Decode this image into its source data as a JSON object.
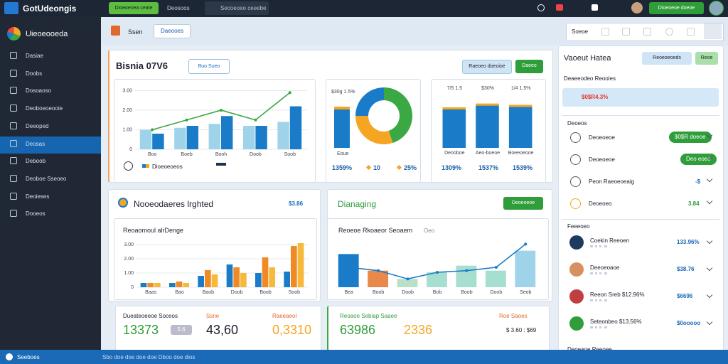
{
  "topbar": {
    "brand": "GotUdeongis",
    "button": "Dioeoeoea ceate",
    "tab": "Deosoos",
    "search": "Secoeoeo ceeebe",
    "button2": "Dioeoeoe doeoe"
  },
  "sidebar": {
    "brand": "Uieoeooeda",
    "items": [
      "Dasiae",
      "Doobs",
      "Dosoaoso",
      "Deoboeoeooie",
      "Deeoped",
      "Deosas",
      "Deboob",
      "Deoboe Sseoeo",
      "Deoieses",
      "Dooeos"
    ]
  },
  "toolbar": {
    "title": "Ssen",
    "tab": "Daeooes",
    "label": "Soeoe"
  },
  "overview": {
    "title": "Bisnia 07V6",
    "button": "Buo Sueo",
    "actions": [
      "Raeoeo doeoioe",
      "Daeeo"
    ],
    "combo": {
      "type": "bar",
      "ylim": [
        0,
        3.2
      ],
      "yticks": [
        0,
        {
          "value": 1,
          "label": "1.00"
        },
        {
          "value": 2,
          "label": "2.00"
        },
        {
          "value": 3,
          "label": "3.00"
        }
      ],
      "categories": [
        "Boo",
        "Boeb",
        "Booh",
        "Doob",
        "Soob"
      ],
      "series": [
        {
          "color": "#9fd3ea",
          "values": [
            1.0,
            1.1,
            1.3,
            1.2,
            1.4
          ]
        },
        {
          "color": "#1a7cc9",
          "values": [
            0.8,
            1.2,
            1.7,
            1.2,
            2.2
          ]
        }
      ],
      "line": {
        "color": "#3aa843",
        "values": [
          1.0,
          1.5,
          2.0,
          1.5,
          2.9
        ]
      },
      "legend": "Dioeoeoeos"
    },
    "donut": {
      "type": "pie",
      "label": "$30g 1.5%",
      "caption": "Eoue",
      "values": [
        45,
        30,
        25
      ],
      "colors": [
        "#3aa843",
        "#f4a622",
        "#1a7cc9"
      ],
      "stats": [
        "1359%",
        "10",
        "25%"
      ]
    },
    "columns": {
      "type": "bar",
      "ylim": [
        0,
        80
      ],
      "labels": [
        "7/5 1.5",
        "$30%",
        "1/4 1.5%"
      ],
      "categories": [
        "Deooboe",
        "Aeo-boeoe",
        "Boeeoeooe"
      ],
      "series": [
        {
          "color": "#1a7cc9",
          "values": [
            60,
            66,
            64
          ]
        }
      ],
      "stats": [
        "1309%",
        "1537%",
        "1539%"
      ]
    }
  },
  "panel2": {
    "title": "Nooeodaeres lrghted",
    "value": "$3.86",
    "chart": {
      "type": "bar",
      "title": "Reoaomoul alrDenge",
      "ylim": [
        0,
        3.4
      ],
      "yticks": [
        0,
        {
          "value": 1,
          "label": "1.00"
        },
        {
          "value": 2,
          "label": "2.00"
        },
        {
          "value": 3,
          "label": "3.00"
        }
      ],
      "categories": [
        "Baas",
        "Bao",
        "Baob",
        "Doob",
        "Boob",
        "Soob"
      ],
      "series": [
        {
          "color": "#1a7cc9",
          "values": [
            0.3,
            0.3,
            0.8,
            1.6,
            1.0,
            1.1
          ]
        },
        {
          "color": "#f08a24",
          "values": [
            0.3,
            0.4,
            1.2,
            1.4,
            2.1,
            2.9
          ]
        },
        {
          "color": "#f6b93b",
          "values": [
            0.3,
            0.3,
            0.9,
            1.0,
            1.4,
            3.1
          ]
        }
      ]
    }
  },
  "panel3": {
    "title": "Dianaging",
    "button": "Deoeoeoe",
    "chart": {
      "type": "bar",
      "title": "Reoeoe Rkoaeor Seoaem",
      "subtitle": "Oeo",
      "ylim": [
        0,
        3
      ],
      "categories": [
        "Bea",
        "Boob",
        "Doob",
        "Bob",
        "Boob",
        "Doob",
        "Seob"
      ],
      "series": [
        {
          "colors": [
            "#1a7cc9",
            "#e8884a",
            "#b8e0c8",
            "#a6dfd0",
            "#a6dfd0",
            "#a6dfd0",
            "#9fd3ea"
          ],
          "values": [
            2.0,
            1.0,
            0.5,
            0.9,
            1.3,
            1.0,
            2.2
          ]
        }
      ],
      "line": {
        "color": "#1a7cc9",
        "values": [
          1.2,
          1.0,
          0.5,
          0.9,
          1.0,
          1.2,
          2.6
        ]
      }
    }
  },
  "cards": [
    {
      "title": "Dueateoeeoe Soceos",
      "tag": "Ssne",
      "tag2": "Raeeaeol",
      "numbers": [
        "13373",
        "5 6",
        "43,60",
        "0,3310"
      ]
    },
    {
      "title": "Reoaoe Sebiap Saaee",
      "tag": "Roe Saoes",
      "numbers": [
        "63986",
        "2336",
        "$ 3.60 : $69"
      ]
    }
  ],
  "right": {
    "title": "Vaoeut Hatea",
    "buttons": [
      "Reoeoeoeds",
      "Reoe"
    ],
    "section": "Deaeeodeo Reooies",
    "highlight": "$0$R4.3%",
    "list_header": "Deoeos",
    "items": [
      {
        "label": "Deoeoeoe",
        "value": "$0$R doeoe"
      },
      {
        "label": "Deoeoeoe",
        "value": "Deo eoeo"
      },
      {
        "label": "Peon Raeoeoeaig",
        "value": "-$"
      },
      {
        "label": "Deoeoeo",
        "value": "3.84"
      }
    ],
    "people_header": "Feeeoeo",
    "people": [
      {
        "name": "Coekin Reeoen",
        "value": "133.96%"
      },
      {
        "name": "Deeoeoaoe",
        "value": "$38.76"
      },
      {
        "name": "Reeon Sreb $12.96%",
        "value": "$6696"
      },
      {
        "name": "Seteonbeo $13.56%",
        "value": "$0ooooo"
      }
    ],
    "footer": "Deoeaoe Reeoee"
  },
  "statusbar": {
    "left": "Seeboes",
    "center": "Sbo doe doe doe doe Dboo doe dios"
  }
}
